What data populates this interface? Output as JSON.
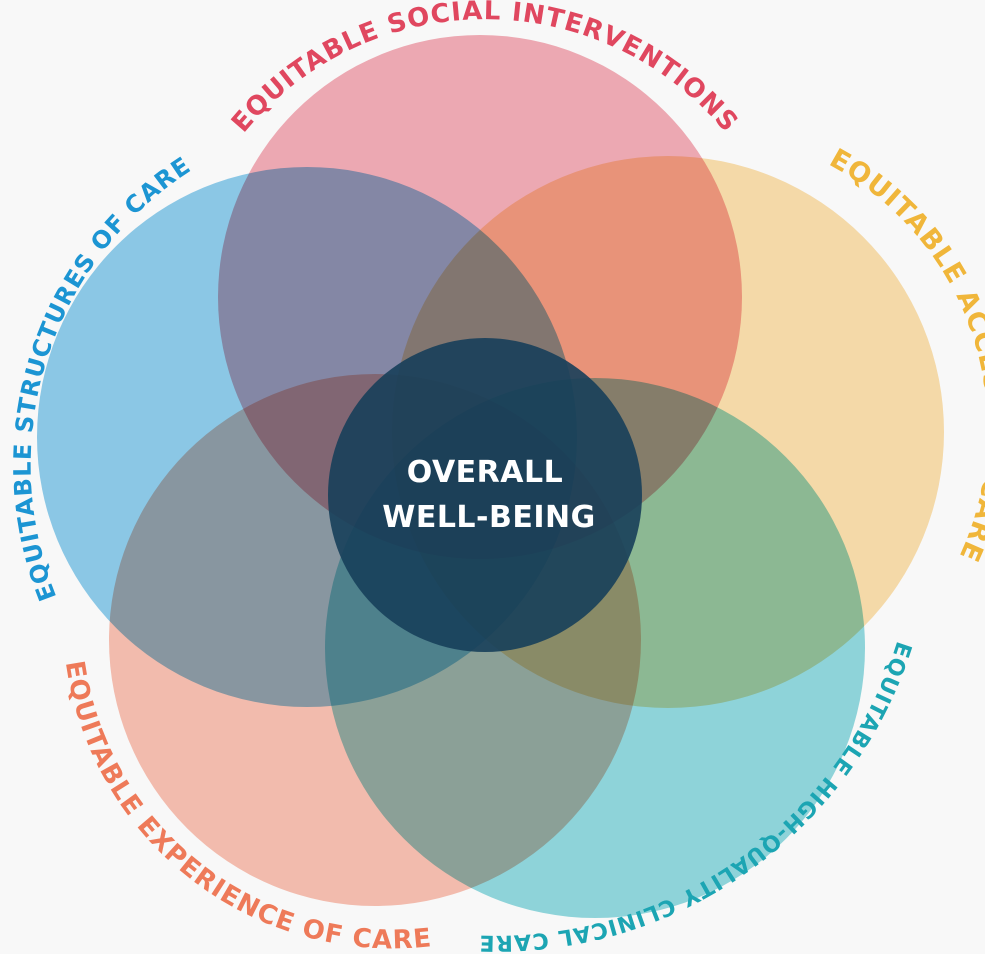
{
  "center": {
    "line1": "OVERALL",
    "line2": "WELL-BEING",
    "color": "#173f5a"
  },
  "petals": [
    {
      "key": "social",
      "label": "EQUITABLE SOCIAL INTERVENTIONS",
      "color": "#ec7b8a",
      "text_color": "#e0475f"
    },
    {
      "key": "access",
      "label": "EQUITABLE ACCESS TO CARE",
      "color": "#f8cc7a",
      "text_color": "#f0b63a"
    },
    {
      "key": "clinical",
      "label": "EQUITABLE HIGH-QUALITY CLINICAL CARE",
      "color": "#4fc2cb",
      "text_color": "#1ca5b3"
    },
    {
      "key": "experience",
      "label": "EQUITABLE EXPERIENCE OF CARE",
      "color": "#f59b83",
      "text_color": "#ee7a59"
    },
    {
      "key": "structures",
      "label": "EQUITABLE STRUCTURES OF CARE",
      "color": "#49aee0",
      "text_color": "#1c95d3"
    }
  ]
}
